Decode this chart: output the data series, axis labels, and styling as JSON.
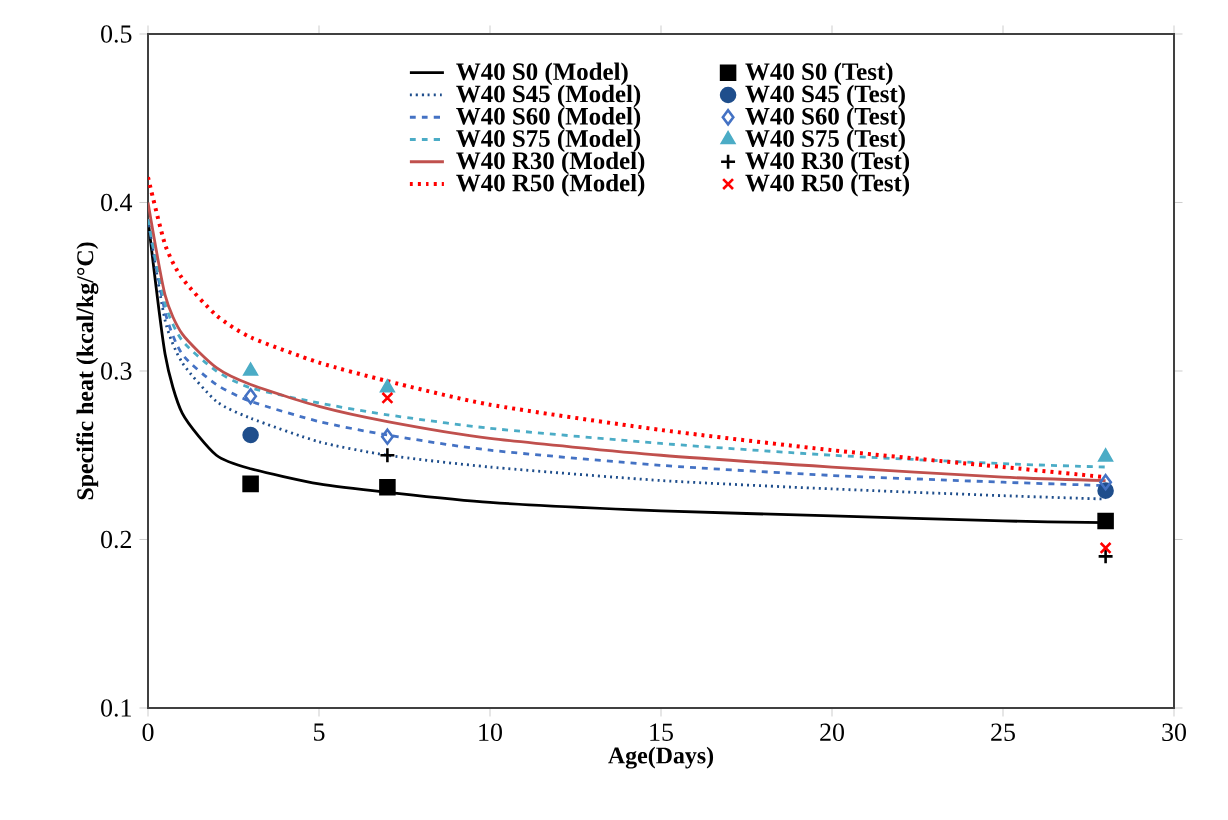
{
  "chart_data": {
    "type": "line",
    "xlabel": "Age(Days)",
    "ylabel": "Specific heat (kcal/kg/°C)",
    "xlim": [
      0,
      30
    ],
    "xticks": [
      0,
      5,
      10,
      15,
      20,
      25,
      30
    ],
    "ylim": [
      0.1,
      0.5
    ],
    "yticks": [
      0.1,
      0.2,
      0.3,
      0.4,
      0.5
    ],
    "grid": false,
    "legend": "top",
    "series": [
      {
        "name": "W40 S0   (Model)",
        "color": "#000000",
        "line_style": "solid",
        "marker": "none",
        "x": [
          0,
          0.5,
          1,
          2,
          3,
          5,
          7,
          10,
          15,
          20,
          25,
          28
        ],
        "values": [
          0.39,
          0.31,
          0.275,
          0.25,
          0.242,
          0.233,
          0.228,
          0.222,
          0.217,
          0.214,
          0.211,
          0.21
        ]
      },
      {
        "name": "W40 S0 (Test)",
        "type": "scatter",
        "color": "#000000",
        "marker": "square",
        "x": [
          3,
          7,
          28
        ],
        "values": [
          0.233,
          0.231,
          0.211
        ]
      },
      {
        "name": "W40 S45 (Model)",
        "color": "#1f4e8c",
        "line_style": "dotted",
        "marker": "none",
        "x": [
          0,
          0.5,
          1,
          2,
          3,
          5,
          7,
          10,
          15,
          20,
          25,
          28
        ],
        "values": [
          0.39,
          0.33,
          0.305,
          0.282,
          0.272,
          0.258,
          0.25,
          0.243,
          0.235,
          0.23,
          0.226,
          0.224
        ]
      },
      {
        "name": "W40 S45 (Test)",
        "type": "scatter",
        "color": "#1f4e8c",
        "marker": "circle",
        "x": [
          3,
          28
        ],
        "values": [
          0.262,
          0.229
        ]
      },
      {
        "name": "W40 S60 (Model)",
        "color": "#4472c4",
        "line_style": "dashed",
        "marker": "none",
        "x": [
          0,
          0.5,
          1,
          2,
          3,
          5,
          7,
          10,
          15,
          20,
          25,
          28
        ],
        "values": [
          0.39,
          0.335,
          0.31,
          0.292,
          0.282,
          0.27,
          0.262,
          0.253,
          0.244,
          0.238,
          0.234,
          0.232
        ]
      },
      {
        "name": "W40 S60 (Test)",
        "type": "scatter",
        "color": "#4472c4",
        "marker": "diamond",
        "x": [
          3,
          7,
          28
        ],
        "values": [
          0.285,
          0.261,
          0.234
        ]
      },
      {
        "name": "W40 S75 (Model)",
        "color": "#4bacc6",
        "line_style": "dashed",
        "marker": "none",
        "x": [
          0,
          0.5,
          1,
          2,
          3,
          5,
          7,
          10,
          15,
          20,
          25,
          28
        ],
        "values": [
          0.39,
          0.34,
          0.318,
          0.3,
          0.29,
          0.281,
          0.274,
          0.266,
          0.257,
          0.25,
          0.245,
          0.243
        ]
      },
      {
        "name": "W40 S75 (Test)",
        "type": "scatter",
        "color": "#4bacc6",
        "marker": "triangle",
        "x": [
          3,
          7,
          28
        ],
        "values": [
          0.3,
          0.29,
          0.249
        ]
      },
      {
        "name": "W40 R30 (Model)",
        "color": "#c0504d",
        "line_style": "solid",
        "marker": "none",
        "x": [
          0,
          0.5,
          1,
          2,
          3,
          5,
          7,
          10,
          15,
          20,
          25,
          28
        ],
        "values": [
          0.4,
          0.345,
          0.322,
          0.302,
          0.292,
          0.279,
          0.27,
          0.26,
          0.25,
          0.243,
          0.237,
          0.235
        ]
      },
      {
        "name": "W40 R30 (Test)",
        "type": "scatter",
        "color": "#000000",
        "marker": "cross",
        "x": [
          7,
          28
        ],
        "values": [
          0.25,
          0.19
        ]
      },
      {
        "name": "W40 R50 (Model)",
        "color": "#ff0000",
        "line_style": "dotted",
        "marker": "none",
        "x": [
          0,
          0.5,
          1,
          2,
          3,
          5,
          7,
          10,
          15,
          20,
          25,
          28
        ],
        "values": [
          0.415,
          0.375,
          0.355,
          0.333,
          0.32,
          0.305,
          0.294,
          0.28,
          0.265,
          0.253,
          0.243,
          0.237
        ]
      },
      {
        "name": "W40 R50 (Test)",
        "type": "scatter",
        "color": "#ff0000",
        "marker": "x",
        "x": [
          7,
          28
        ],
        "values": [
          0.284,
          0.195
        ]
      }
    ]
  }
}
